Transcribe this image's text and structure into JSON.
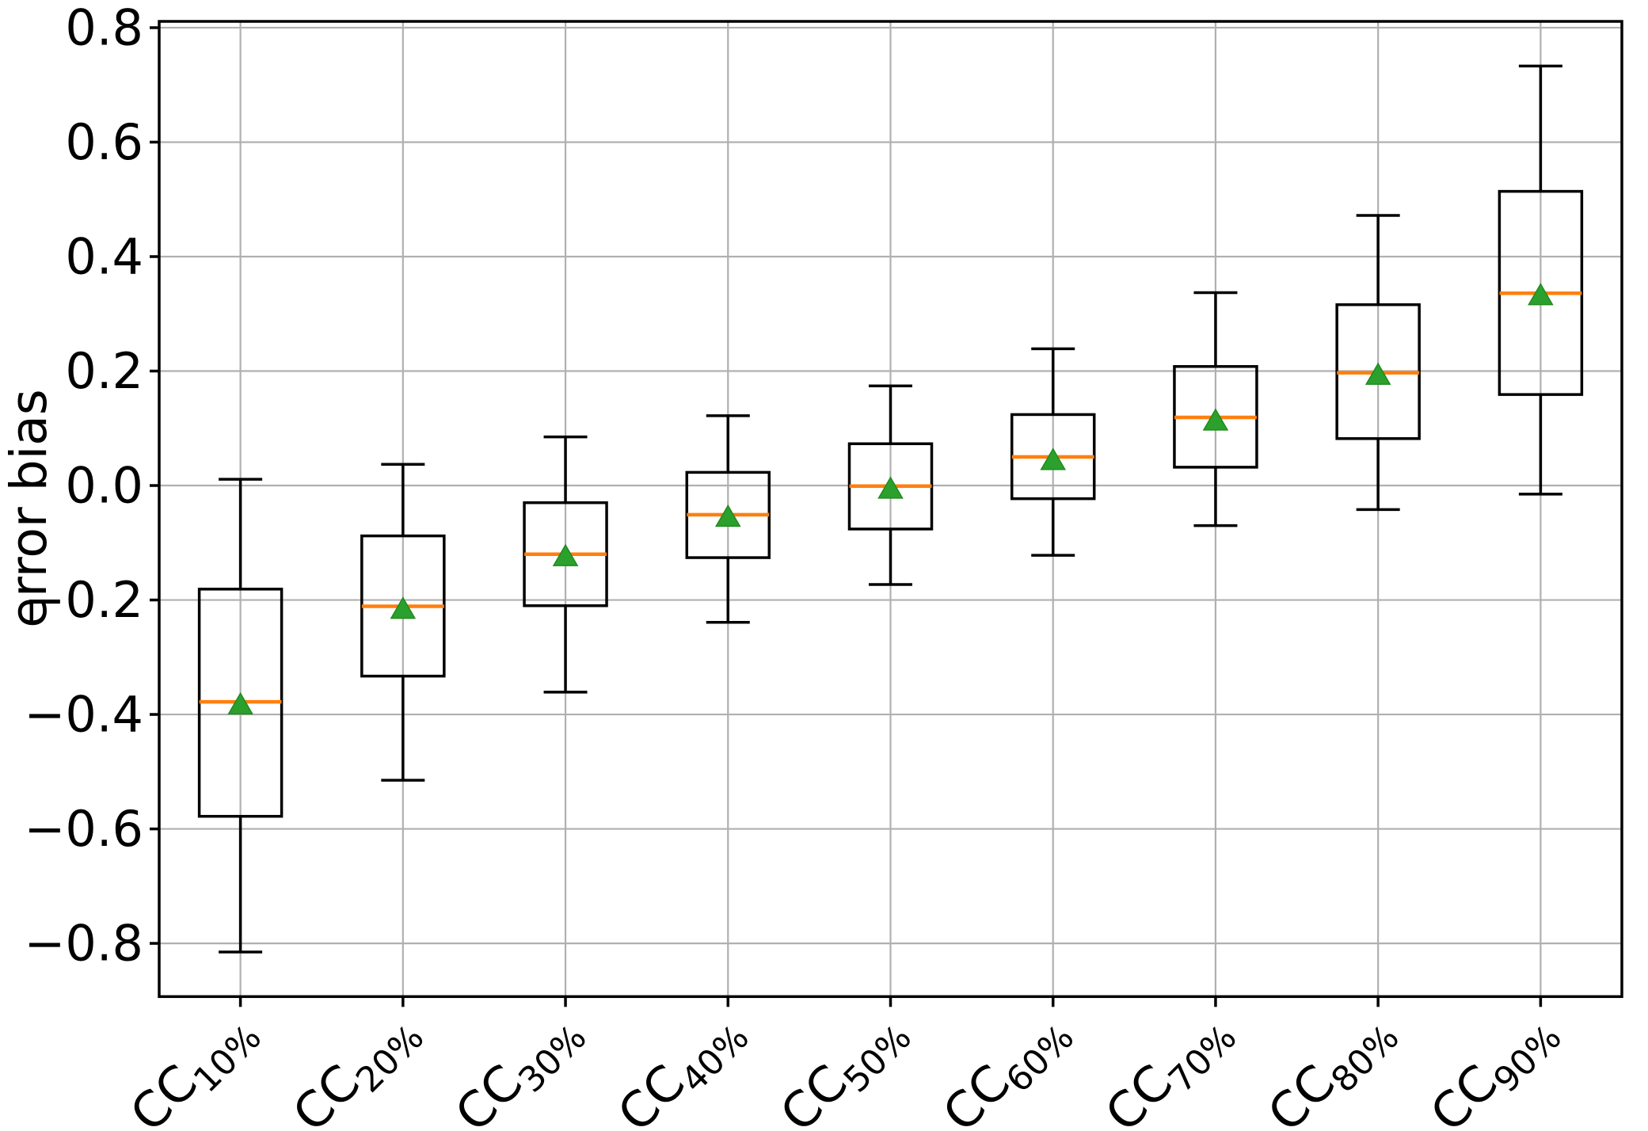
{
  "figure": {
    "background": "#ffffff"
  },
  "chart_data": {
    "type": "boxplot",
    "title": "",
    "xlabel": "",
    "ylabel": "error bias",
    "ylim": [
      -0.893,
      0.811
    ],
    "grid": true,
    "yticks": [
      0.8,
      0.6,
      0.4,
      0.2,
      0.0,
      -0.2,
      -0.4,
      -0.6,
      -0.8
    ],
    "ytick_labels": [
      "0.8",
      "0.6",
      "0.4",
      "0.2",
      "0.0",
      "−0.2",
      "−0.4",
      "−0.6",
      "−0.8"
    ],
    "categories": [
      {
        "base": "CC",
        "sub": "10%",
        "label": "CC10%"
      },
      {
        "base": "CC",
        "sub": "20%",
        "label": "CC20%"
      },
      {
        "base": "CC",
        "sub": "30%",
        "label": "CC30%"
      },
      {
        "base": "CC",
        "sub": "40%",
        "label": "CC40%"
      },
      {
        "base": "CC",
        "sub": "50%",
        "label": "CC50%"
      },
      {
        "base": "CC",
        "sub": "60%",
        "label": "CC60%"
      },
      {
        "base": "CC",
        "sub": "70%",
        "label": "CC70%"
      },
      {
        "base": "CC",
        "sub": "80%",
        "label": "CC80%"
      },
      {
        "base": "CC",
        "sub": "90%",
        "label": "CC90%"
      }
    ],
    "boxes": [
      {
        "label": "CC10%",
        "whisker_low": -0.815,
        "q1": -0.578,
        "median": -0.378,
        "mean": -0.381,
        "q3": -0.181,
        "whisker_high": 0.011
      },
      {
        "label": "CC20%",
        "whisker_low": -0.515,
        "q1": -0.333,
        "median": -0.211,
        "mean": -0.214,
        "q3": -0.088,
        "whisker_high": 0.037
      },
      {
        "label": "CC30%",
        "whisker_low": -0.361,
        "q1": -0.21,
        "median": -0.12,
        "mean": -0.122,
        "q3": -0.03,
        "whisker_high": 0.085
      },
      {
        "label": "CC40%",
        "whisker_low": -0.239,
        "q1": -0.126,
        "median": -0.051,
        "mean": -0.053,
        "q3": 0.023,
        "whisker_high": 0.122
      },
      {
        "label": "CC50%",
        "whisker_low": -0.173,
        "q1": -0.076,
        "median": -0.001,
        "mean": -0.004,
        "q3": 0.073,
        "whisker_high": 0.174
      },
      {
        "label": "CC60%",
        "whisker_low": -0.122,
        "q1": -0.023,
        "median": 0.05,
        "mean": 0.046,
        "q3": 0.124,
        "whisker_high": 0.239
      },
      {
        "label": "CC70%",
        "whisker_low": -0.07,
        "q1": 0.032,
        "median": 0.119,
        "mean": 0.115,
        "q3": 0.208,
        "whisker_high": 0.337
      },
      {
        "label": "CC80%",
        "whisker_low": -0.042,
        "q1": 0.082,
        "median": 0.197,
        "mean": 0.195,
        "q3": 0.316,
        "whisker_high": 0.472
      },
      {
        "label": "CC90%",
        "whisker_low": -0.015,
        "q1": 0.159,
        "median": 0.336,
        "mean": 0.334,
        "q3": 0.514,
        "whisker_high": 0.733
      }
    ],
    "colors": {
      "spine": "#000000",
      "box": "#000000",
      "whisker": "#000000",
      "median": "#ff7f0e",
      "mean_fill": "#2ca02c",
      "mean_edge": "#1f8b1f",
      "grid": "#b0b0b0",
      "tick_label": "#000000"
    },
    "legend": null
  }
}
